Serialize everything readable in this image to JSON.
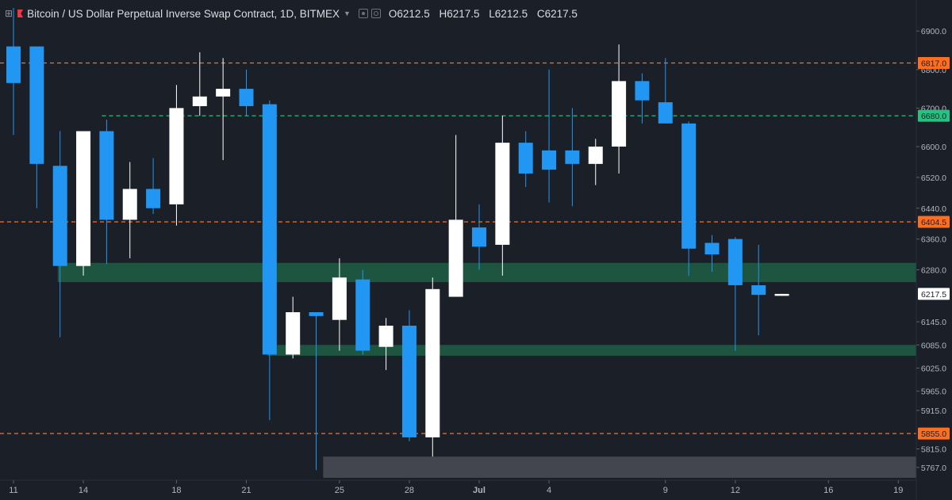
{
  "header": {
    "title": "Bitcoin / US Dollar Perpetual Inverse Swap Contract, 1D, BITMEX",
    "icons": [
      "chart-symbol-icon",
      "exchange-flag-icon",
      "dropdown-caret-icon",
      "visibility-icon",
      "settings-icon"
    ],
    "ohlc": [
      {
        "key": "O",
        "value": "6212.5"
      },
      {
        "key": "H",
        "value": "6217.5"
      },
      {
        "key": "L",
        "value": "6212.5"
      },
      {
        "key": "C",
        "value": "6217.5"
      }
    ]
  },
  "colors": {
    "background": "#1b1f27",
    "bullish": "#ffffff",
    "bearish": "#2196f3",
    "resistance_line": "#ff6d1f",
    "support_line_green": "#26c281",
    "zone_green": "#1f5f45",
    "zone_gray": "#4a4e57",
    "axis_text": "#b2b5be",
    "current_label_bg": "#ffffff"
  },
  "chart_data": {
    "type": "candlestick",
    "symbol": "Bitcoin / US Dollar Perpetual Inverse Swap Contract",
    "interval": "1D",
    "exchange": "BITMEX",
    "price_range": [
      5740,
      6960
    ],
    "y_ticks": [
      "6900.0",
      "6800.0",
      "6700.0",
      "6600.0",
      "6520.0",
      "6440.0",
      "6360.0",
      "6280.0",
      "6145.0",
      "6085.0",
      "6025.0",
      "5965.0",
      "5915.0",
      "5815.0",
      "5767.0"
    ],
    "x_ticks": [
      {
        "label": "11",
        "index": 0
      },
      {
        "label": "14",
        "index": 3
      },
      {
        "label": "18",
        "index": 7
      },
      {
        "label": "21",
        "index": 10
      },
      {
        "label": "25",
        "index": 14
      },
      {
        "label": "28",
        "index": 17
      },
      {
        "label": "Jul",
        "index": 20
      },
      {
        "label": "4",
        "index": 23
      },
      {
        "label": "9",
        "index": 28
      },
      {
        "label": "12",
        "index": 31
      },
      {
        "label": "16",
        "index": 35
      },
      {
        "label": "19",
        "index": 38
      }
    ],
    "candles": [
      {
        "o": 6860,
        "h": 6960,
        "l": 6630,
        "c": 6765
      },
      {
        "o": 6860,
        "h": 6860,
        "l": 6440,
        "c": 6555
      },
      {
        "o": 6550,
        "h": 6640,
        "l": 6105,
        "c": 6290
      },
      {
        "o": 6290,
        "h": 6640,
        "l": 6265,
        "c": 6640
      },
      {
        "o": 6640,
        "h": 6670,
        "l": 6295,
        "c": 6410
      },
      {
        "o": 6410,
        "h": 6560,
        "l": 6310,
        "c": 6490
      },
      {
        "o": 6490,
        "h": 6570,
        "l": 6425,
        "c": 6440
      },
      {
        "o": 6450,
        "h": 6760,
        "l": 6395,
        "c": 6700
      },
      {
        "o": 6705,
        "h": 6845,
        "l": 6680,
        "c": 6730
      },
      {
        "o": 6730,
        "h": 6830,
        "l": 6565,
        "c": 6750
      },
      {
        "o": 6750,
        "h": 6800,
        "l": 6680,
        "c": 6705
      },
      {
        "o": 6710,
        "h": 6720,
        "l": 5890,
        "c": 6060
      },
      {
        "o": 6060,
        "h": 6210,
        "l": 6050,
        "c": 6170
      },
      {
        "o": 6170,
        "h": 6170,
        "l": 5760,
        "c": 6160
      },
      {
        "o": 6150,
        "h": 6310,
        "l": 6070,
        "c": 6260
      },
      {
        "o": 6255,
        "h": 6280,
        "l": 6060,
        "c": 6070
      },
      {
        "o": 6080,
        "h": 6155,
        "l": 6020,
        "c": 6135
      },
      {
        "o": 6135,
        "h": 6175,
        "l": 5835,
        "c": 5845
      },
      {
        "o": 5845,
        "h": 6260,
        "l": 5795,
        "c": 6230
      },
      {
        "o": 6210,
        "h": 6630,
        "l": 6210,
        "c": 6410
      },
      {
        "o": 6390,
        "h": 6450,
        "l": 6280,
        "c": 6340
      },
      {
        "o": 6345,
        "h": 6680,
        "l": 6265,
        "c": 6610
      },
      {
        "o": 6610,
        "h": 6640,
        "l": 6495,
        "c": 6530
      },
      {
        "o": 6590,
        "h": 6800,
        "l": 6455,
        "c": 6540
      },
      {
        "o": 6590,
        "h": 6700,
        "l": 6445,
        "c": 6555
      },
      {
        "o": 6555,
        "h": 6620,
        "l": 6500,
        "c": 6600
      },
      {
        "o": 6600,
        "h": 6865,
        "l": 6530,
        "c": 6770
      },
      {
        "o": 6770,
        "h": 6790,
        "l": 6660,
        "c": 6720
      },
      {
        "o": 6715,
        "h": 6830,
        "l": 6670,
        "c": 6660
      },
      {
        "o": 6660,
        "h": 6665,
        "l": 6265,
        "c": 6335
      },
      {
        "o": 6350,
        "h": 6370,
        "l": 6275,
        "c": 6320
      },
      {
        "o": 6360,
        "h": 6365,
        "l": 6070,
        "c": 6240
      },
      {
        "o": 6240,
        "h": 6345,
        "l": 6110,
        "c": 6215
      },
      {
        "o": 6212.5,
        "h": 6217.5,
        "l": 6212.5,
        "c": 6217.5
      }
    ],
    "levels": [
      {
        "price": 6817.0,
        "label": "6817.0",
        "color": "#ff6d1f",
        "style": "dashed",
        "from": 0
      },
      {
        "price": 6680.0,
        "label": "6680.0",
        "color": "#26c281",
        "style": "dashed",
        "from": 3.8
      },
      {
        "price": 6404.5,
        "label": "6404.5",
        "color": "#ff6d1f",
        "style": "dashed",
        "from": 0
      },
      {
        "price": 5855.0,
        "label": "5855.0",
        "color": "#ff6d1f",
        "style": "dashed",
        "from": 0
      }
    ],
    "zones": [
      {
        "from": 1.9,
        "top": 6298,
        "bottom": 6248,
        "color": "#1f5f45"
      },
      {
        "from": 10.9,
        "top": 6085,
        "bottom": 6057,
        "color": "#1f5f45"
      },
      {
        "from": 13.3,
        "top": 5795,
        "bottom": 5740,
        "color": "#4a4e57"
      }
    ],
    "current_price": {
      "value": 6217.5,
      "label": "6217.5"
    }
  }
}
